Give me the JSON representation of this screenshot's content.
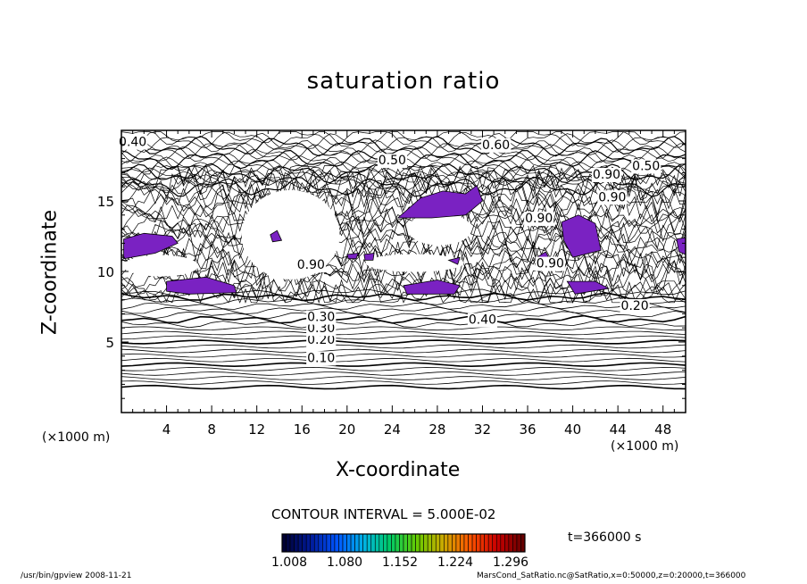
{
  "chart_data": {
    "type": "contour",
    "title": "saturation ratio",
    "xlabel": "X-coordinate",
    "ylabel": "Z-coordinate",
    "x_unit_left": "(×1000 m)",
    "x_unit_right": "(×1000 m)",
    "xlim": [
      0,
      50
    ],
    "ylim": [
      0,
      20
    ],
    "x_ticks": [
      4,
      8,
      12,
      16,
      20,
      24,
      28,
      32,
      36,
      40,
      44,
      48
    ],
    "y_ticks": [
      5,
      10,
      15
    ],
    "contour_interval_label": "CONTOUR INTERVAL = 5.000E-02",
    "contour_labels": [
      {
        "text": "0.10",
        "x": 17.7,
        "z": 3.9
      },
      {
        "text": "0.20",
        "x": 17.7,
        "z": 5.2
      },
      {
        "text": "0.30",
        "x": 17.7,
        "z": 6.0
      },
      {
        "text": "0.30",
        "x": 17.7,
        "z": 6.8
      },
      {
        "text": "0.40",
        "x": 32.0,
        "z": 6.6
      },
      {
        "text": "0.50",
        "x": 24.0,
        "z": 17.9
      },
      {
        "text": "0.50",
        "x": 46.5,
        "z": 17.5
      },
      {
        "text": "0.60",
        "x": 33.2,
        "z": 19.0
      },
      {
        "text": "0.40",
        "x": 1.0,
        "z": 19.2
      },
      {
        "text": "0.90",
        "x": 16.8,
        "z": 10.5
      },
      {
        "text": "0.90",
        "x": 38.0,
        "z": 10.6
      },
      {
        "text": "0.90",
        "x": 43.5,
        "z": 15.3
      },
      {
        "text": "0.90",
        "x": 37.0,
        "z": 13.8
      },
      {
        "text": "0.90",
        "x": 43.0,
        "z": 16.9
      },
      {
        "text": "0.20",
        "x": 45.5,
        "z": 7.6
      }
    ],
    "supersaturated_regions_label_range": [
      1.008,
      1.296
    ],
    "colorbar": {
      "min": 1.008,
      "max": 1.296,
      "ticks": [
        "1.008",
        "1.080",
        "1.152",
        "1.224",
        "1.296"
      ],
      "colors": [
        "#000033",
        "#001a99",
        "#0055ff",
        "#00b3e6",
        "#00cc66",
        "#66cc00",
        "#ccaa00",
        "#ff5500",
        "#cc0000",
        "#660000"
      ]
    },
    "time_label": "t=366000 s"
  },
  "footer": {
    "left": "/usr/bin/gpview   2008-11-21",
    "right": "MarsCond_SatRatio.nc@SatRatio,x=0:50000,z=0:20000,t=366000"
  },
  "colors": {
    "contour": "#000000",
    "supersaturated_fill": "#7a22c2"
  }
}
